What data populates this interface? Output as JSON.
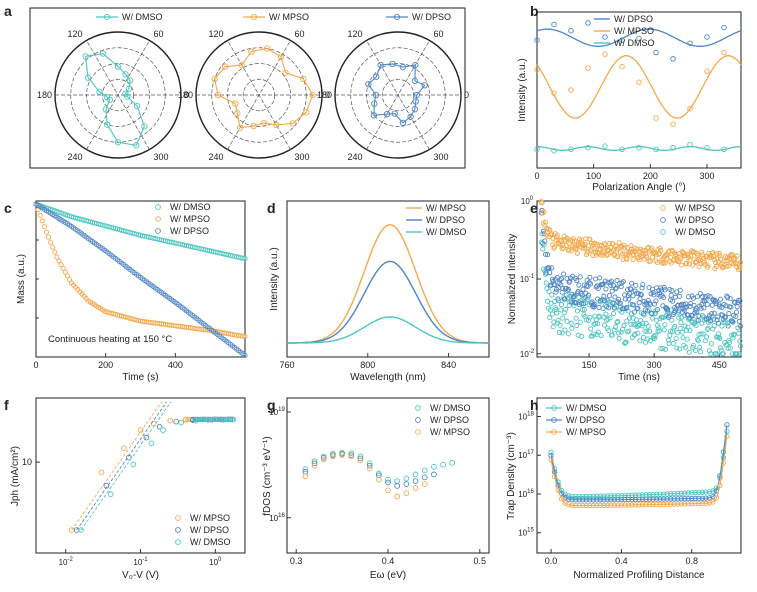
{
  "colors": {
    "teal": "#4ec6c0",
    "orange": "#f4a94c",
    "blue": "#4f86c6",
    "axis": "#222222"
  },
  "chart_data": [
    {
      "panel": "a",
      "type": "polar",
      "series": [
        {
          "name": "W/ DMSO",
          "color": "teal",
          "marker": "circle-open",
          "theta_deg": [
            10,
            30,
            50,
            70,
            90,
            110,
            130,
            150,
            170,
            190,
            210,
            230,
            250,
            270,
            290,
            310,
            330,
            350
          ],
          "r": [
            0.12,
            0.2,
            0.3,
            0.35,
            0.45,
            0.7,
            0.8,
            0.55,
            0.3,
            0.18,
            0.15,
            0.3,
            0.5,
            0.75,
            0.85,
            0.65,
            0.35,
            0.15
          ]
        },
        {
          "name": "W/ MPSO",
          "color": "orange",
          "marker": "circle-open",
          "theta_deg": [
            0,
            20,
            40,
            60,
            80,
            100,
            120,
            140,
            160,
            180,
            200,
            220,
            240,
            260,
            280,
            300,
            320,
            340
          ],
          "r": [
            0.85,
            0.75,
            0.55,
            0.7,
            0.75,
            0.7,
            0.55,
            0.7,
            0.75,
            0.65,
            0.4,
            0.45,
            0.6,
            0.5,
            0.45,
            0.55,
            0.7,
            0.8
          ]
        },
        {
          "name": "W/ DPSO",
          "color": "blue",
          "marker": "circle-open",
          "theta_deg": [
            0,
            20,
            40,
            60,
            80,
            100,
            120,
            140,
            160,
            180,
            200,
            220,
            240,
            260,
            280,
            300,
            320,
            340
          ],
          "r": [
            0.3,
            0.45,
            0.35,
            0.55,
            0.45,
            0.5,
            0.55,
            0.45,
            0.5,
            0.35,
            0.4,
            0.5,
            0.35,
            0.3,
            0.45,
            0.4,
            0.35,
            0.3
          ]
        }
      ],
      "angle_ticks": [
        "60",
        "120",
        "180",
        "240",
        "300",
        "0"
      ]
    },
    {
      "panel": "b",
      "type": "scatter+fit",
      "xlabel": "Polarization Angle (°)",
      "ylabel": "Intensity (a.u.)",
      "xlim": [
        0,
        360
      ],
      "ylim": [
        0,
        1
      ],
      "xticks": [
        "0",
        "100",
        "200",
        "300"
      ],
      "series": [
        {
          "name": "W/ DPSO",
          "color": "blue",
          "x": [
            0,
            30,
            60,
            90,
            120,
            150,
            180,
            210,
            240,
            270,
            300,
            330
          ],
          "y": [
            0.82,
            0.92,
            0.88,
            0.93,
            0.84,
            0.82,
            0.83,
            0.74,
            0.7,
            0.8,
            0.84,
            0.9
          ],
          "fit": {
            "offset": 0.835,
            "amp": 0.055,
            "period": 180,
            "phase": 0
          }
        },
        {
          "name": "W/ MPSO",
          "color": "orange",
          "x": [
            0,
            30,
            60,
            90,
            120,
            150,
            180,
            210,
            240,
            270,
            300,
            330
          ],
          "y": [
            0.63,
            0.48,
            0.5,
            0.64,
            0.73,
            0.65,
            0.55,
            0.32,
            0.28,
            0.38,
            0.62,
            0.74
          ],
          "fit": {
            "offset": 0.52,
            "amp": 0.2,
            "period": 180,
            "phase": 0
          }
        },
        {
          "name": "W/ DMSO",
          "color": "teal",
          "x": [
            0,
            30,
            60,
            90,
            120,
            150,
            180,
            210,
            240,
            270,
            300,
            330
          ],
          "y": [
            0.12,
            0.11,
            0.12,
            0.13,
            0.14,
            0.12,
            0.13,
            0.12,
            0.13,
            0.15,
            0.13,
            0.12
          ],
          "fit": {
            "offset": 0.125,
            "amp": 0.012,
            "period": 90,
            "phase": 0
          }
        }
      ]
    },
    {
      "panel": "c",
      "type": "scatter",
      "xlabel": "Time (s)",
      "ylabel": "Mass (a.u.)",
      "xlim": [
        0,
        600
      ],
      "ylim": [
        0,
        1
      ],
      "xticks": [
        "0",
        "200",
        "400"
      ],
      "annotation": "Continuous heating at 150 °C",
      "series": [
        {
          "name": "W/ DMSO",
          "color": "teal",
          "x": [
            0,
            100,
            200,
            300,
            400,
            500,
            600
          ],
          "y": [
            0.98,
            0.9,
            0.84,
            0.78,
            0.73,
            0.68,
            0.63
          ]
        },
        {
          "name": "W/ MPSO",
          "color": "orange",
          "x": [
            0,
            30,
            60,
            100,
            150,
            200,
            300,
            400,
            500,
            600
          ],
          "y": [
            0.98,
            0.8,
            0.64,
            0.48,
            0.36,
            0.29,
            0.23,
            0.2,
            0.17,
            0.13
          ]
        },
        {
          "name": "W/ DPSO",
          "color": "blue",
          "x": [
            0,
            100,
            200,
            300,
            400,
            500,
            600
          ],
          "y": [
            0.98,
            0.84,
            0.68,
            0.51,
            0.35,
            0.18,
            0.01
          ]
        }
      ]
    },
    {
      "panel": "d",
      "type": "line",
      "xlabel": "Wavelength (nm)",
      "ylabel": "Intensity (a.u.)",
      "xlim": [
        760,
        860
      ],
      "ylim": [
        0,
        1.2
      ],
      "xticks": [
        "760",
        "800",
        "840"
      ],
      "series": [
        {
          "name": "W/ MPSO",
          "color": "orange",
          "center": 811,
          "width": 18,
          "peak": 1.0
        },
        {
          "name": "W/ DPSO",
          "color": "blue",
          "center": 811,
          "width": 18,
          "peak": 0.69
        },
        {
          "name": "W/ DMSO",
          "color": "teal",
          "center": 811,
          "width": 18,
          "peak": 0.22
        }
      ]
    },
    {
      "panel": "e",
      "type": "scatter",
      "xlabel": "Time (ns)",
      "ylabel": "Normalized Intensity",
      "xscale": "linear",
      "yscale": "log",
      "xlim": [
        30,
        500
      ],
      "ylim": [
        0.01,
        1
      ],
      "xticks": [
        "150",
        "300",
        "450"
      ],
      "yticks": [
        "10",
        "10",
        "10"
      ],
      "ytick_exps": [
        "-2",
        "-1",
        "0"
      ],
      "series": [
        {
          "name": "W/ MPSO",
          "color": "orange",
          "decay": {
            "a": 0.65,
            "tau_fast": 8,
            "level": 0.3,
            "tau_slow": 700,
            "noise": 0.25
          }
        },
        {
          "name": "W/ DPSO",
          "color": "blue",
          "decay": {
            "a": 0.55,
            "tau_fast": 6,
            "level": 0.085,
            "tau_slow": 550,
            "noise": 0.45
          }
        },
        {
          "name": "W/ DMSO",
          "color": "teal",
          "decay": {
            "a": 0.5,
            "tau_fast": 5,
            "level": 0.04,
            "tau_slow": 500,
            "noise": 0.6
          }
        }
      ]
    },
    {
      "panel": "f",
      "type": "scatter",
      "xlabel": "V₀-V (V)",
      "ylabel": "Jph (mA/cm²)",
      "xscale": "log",
      "yscale": "log",
      "xlim": [
        0.004,
        2.5
      ],
      "ylim": [
        1.4,
        40
      ],
      "xticks": [
        "10",
        "10",
        "10",
        "10"
      ],
      "xtick_exps": [
        "-2",
        "-1",
        "0",
        ""
      ],
      "yticks": [
        "10"
      ],
      "series": [
        {
          "name": "W/ MPSO",
          "color": "orange",
          "x": [
            0.012,
            0.03,
            0.06,
            0.1,
            0.15,
            0.25,
            0.4,
            0.7,
            1.0,
            1.5
          ],
          "y": [
            2.3,
            8,
            13.5,
            20,
            23,
            24.5,
            25,
            25.2,
            25.3,
            25.3
          ]
        },
        {
          "name": "W/ DPSO",
          "color": "blue",
          "x": [
            0.014,
            0.035,
            0.07,
            0.12,
            0.18,
            0.3,
            0.5,
            0.8,
            1.2,
            1.6
          ],
          "y": [
            2.3,
            6,
            11,
            17,
            21.5,
            24,
            24.8,
            25,
            25.1,
            25.2
          ]
        },
        {
          "name": "W/ DMSO",
          "color": "teal",
          "x": [
            0.016,
            0.04,
            0.08,
            0.14,
            0.2,
            0.35,
            0.55,
            0.9,
            1.3,
            1.7
          ],
          "y": [
            2.3,
            5,
            9.5,
            15,
            20,
            23.5,
            24.5,
            24.9,
            25,
            25.1
          ]
        }
      ]
    },
    {
      "panel": "g",
      "type": "scatter",
      "xlabel": "Eω (eV)",
      "ylabel": "fDOS (cm⁻³ eV⁻¹)",
      "yscale": "log",
      "xlim": [
        0.29,
        0.51
      ],
      "ylim": [
        1000000000000000.0,
        2.5e+19
      ],
      "xticks": [
        "0.3",
        "0.4",
        "0.5"
      ],
      "yticks": [
        "10",
        "10"
      ],
      "ytick_exps": [
        "16",
        "19"
      ],
      "series": [
        {
          "name": "W/ DMSO",
          "color": "teal",
          "x": [
            0.31,
            0.32,
            0.33,
            0.34,
            0.35,
            0.36,
            0.37,
            0.38,
            0.39,
            0.4,
            0.41,
            0.42,
            0.43,
            0.44,
            0.45,
            0.46,
            0.47
          ],
          "y": [
            2.4e+17,
            4e+17,
            5.5e+17,
            6.5e+17,
            7e+17,
            6.8e+17,
            5.5e+17,
            3.5e+17,
            1.8e+17,
            1.2e+17,
            1.1e+17,
            1.3e+17,
            1.7e+17,
            2.2e+17,
            2.8e+17,
            3.2e+17,
            3.6e+17
          ]
        },
        {
          "name": "W/ DPSO",
          "color": "blue",
          "x": [
            0.31,
            0.32,
            0.33,
            0.34,
            0.35,
            0.36,
            0.37,
            0.38,
            0.39,
            0.4,
            0.41,
            0.42,
            0.43,
            0.44,
            0.45
          ],
          "y": [
            2e+17,
            3.5e+17,
            5e+17,
            6e+17,
            6.5e+17,
            6e+17,
            4.8e+17,
            3e+17,
            1.6e+17,
            1e+17,
            8e+16,
            9e+16,
            1.1e+17,
            1.4e+17,
            1.7e+17
          ]
        },
        {
          "name": "W/ MPSO",
          "color": "orange",
          "x": [
            0.31,
            0.32,
            0.33,
            0.34,
            0.35,
            0.36,
            0.37,
            0.38,
            0.39,
            0.4,
            0.41,
            0.42,
            0.43,
            0.44
          ],
          "y": [
            1.5e+17,
            3e+17,
            4.5e+17,
            5.5e+17,
            6e+17,
            5.5e+17,
            4.2e+17,
            2.5e+17,
            1.2e+17,
            6e+16,
            4e+16,
            5e+16,
            7e+16,
            9e+16
          ]
        }
      ]
    },
    {
      "panel": "h",
      "type": "scatter-line",
      "xlabel": "Normalized Profiling Distance",
      "ylabel": "Trap Density (cm⁻³)",
      "yscale": "log",
      "xlim": [
        -0.08,
        1.08
      ],
      "ylim": [
        300000000000000.0,
        3e+18
      ],
      "xticks": [
        "0.0",
        "0.4",
        "0.8"
      ],
      "yticks": [
        "10",
        "10",
        "10",
        "10"
      ],
      "ytick_exps": [
        "15",
        "16",
        "17",
        "18"
      ],
      "series": [
        {
          "name": "W/ DMSO",
          "color": "teal",
          "base": 8500000000000000.0,
          "rise": 1.2e+16,
          "peak0": 1.1e+17,
          "peak1": 4e+17
        },
        {
          "name": "W/ DPSO",
          "color": "blue",
          "base": 7000000000000000.0,
          "rise": 8000000000000000.0,
          "peak0": 9e+16,
          "peak1": 6e+17
        },
        {
          "name": "W/ MPSO",
          "color": "orange",
          "base": 5000000000000000.0,
          "rise": 6000000000000000.0,
          "peak0": 7e+16,
          "peak1": 3e+17
        }
      ]
    }
  ],
  "panel_labels": [
    "a",
    "b",
    "c",
    "d",
    "e",
    "f",
    "g",
    "h"
  ],
  "legends": {
    "a": [
      "W/ DMSO",
      "W/ MPSO",
      "W/ DPSO"
    ],
    "b": [
      "W/ DPSO",
      "W/ MPSO",
      "W/ DMSO"
    ],
    "c": [
      "W/ DMSO",
      "W/ MPSO",
      "W/ DPSO"
    ],
    "d": [
      "W/ MPSO",
      "W/ DPSO",
      "W/ DMSO"
    ],
    "e": [
      "W/ MPSO",
      "W/ DPSO",
      "W/ DMSO"
    ],
    "f": [
      "W/ MPSO",
      "W/ DPSO",
      "W/ DMSO"
    ],
    "g": [
      "W/ DMSO",
      "W/ DPSO",
      "W/ MPSO"
    ],
    "h": [
      "W/ DMSO",
      "W/ DPSO",
      "W/ MPSO"
    ]
  }
}
